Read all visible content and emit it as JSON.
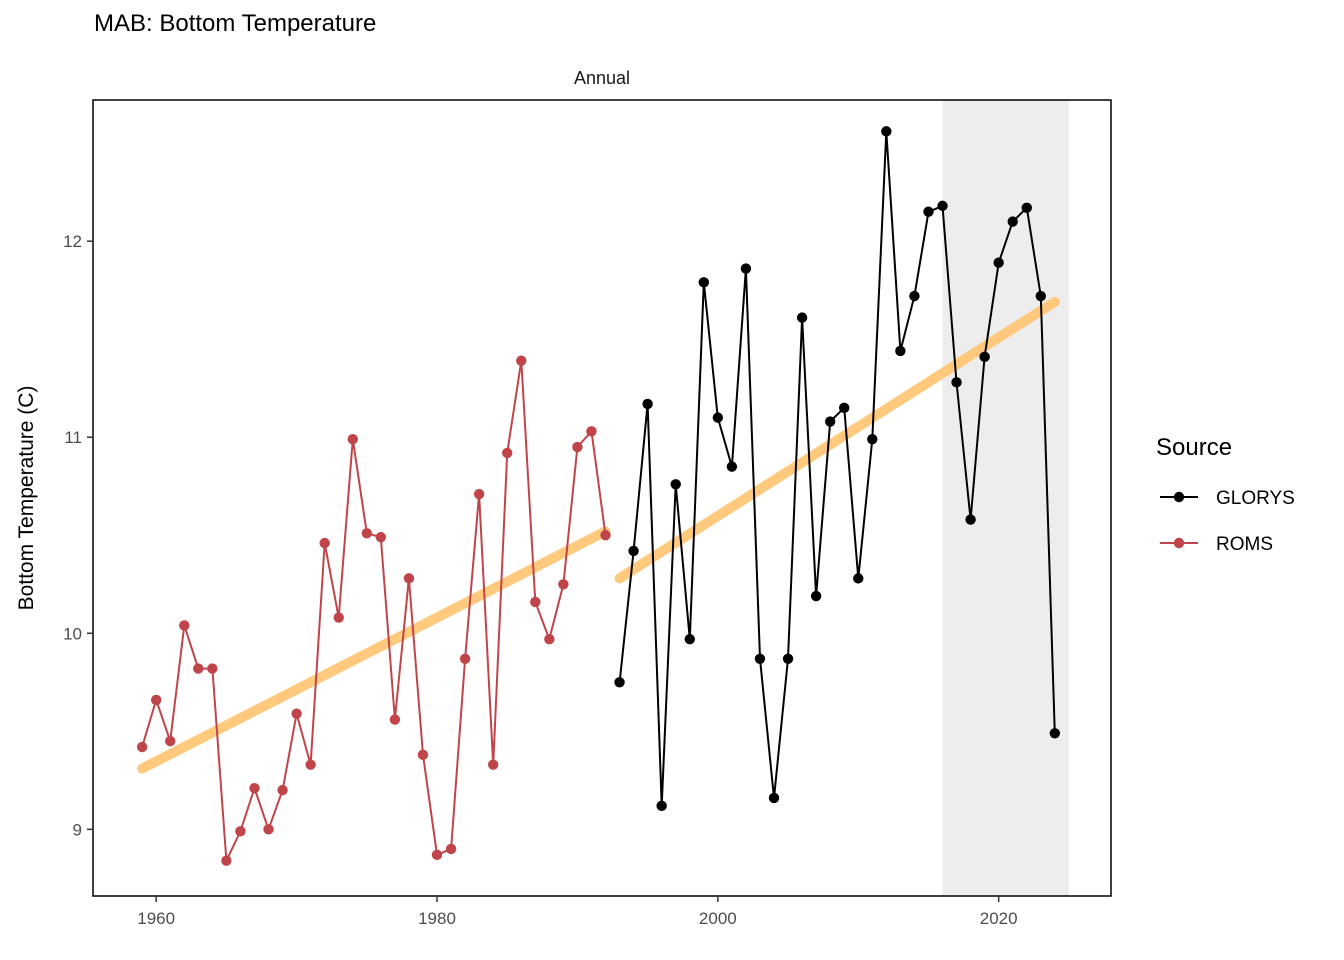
{
  "title": "MAB: Bottom Temperature",
  "chart_data": {
    "type": "line",
    "facet_label": "Annual",
    "xlabel": "",
    "ylabel": "Bottom Temperature (C)",
    "xlim": [
      1955.5,
      2028
    ],
    "ylim": [
      8.66,
      12.72
    ],
    "x_ticks": [
      1960,
      1980,
      2000,
      2020
    ],
    "y_ticks": [
      9,
      10,
      11,
      12
    ],
    "grid": false,
    "shaded_region": {
      "x_start": 2016,
      "x_end": 2025,
      "color": "#ededed"
    },
    "legend": {
      "title": "Source",
      "position": "right"
    },
    "series": [
      {
        "name": "ROMS",
        "color": "#c0454a",
        "x": [
          1959,
          1960,
          1961,
          1962,
          1963,
          1964,
          1965,
          1966,
          1967,
          1968,
          1969,
          1970,
          1971,
          1972,
          1973,
          1974,
          1975,
          1976,
          1977,
          1978,
          1979,
          1980,
          1981,
          1982,
          1983,
          1984,
          1985,
          1986,
          1987,
          1988,
          1989,
          1990,
          1991,
          1992
        ],
        "values": [
          9.42,
          9.66,
          9.45,
          10.04,
          9.82,
          9.82,
          8.84,
          8.99,
          9.21,
          9.0,
          9.2,
          9.59,
          9.33,
          10.46,
          10.08,
          10.99,
          10.51,
          10.49,
          9.56,
          10.28,
          9.38,
          8.87,
          8.9,
          9.87,
          10.71,
          9.33,
          10.92,
          11.39,
          10.16,
          9.97,
          10.25,
          10.95,
          11.03,
          10.5
        ]
      },
      {
        "name": "GLORYS",
        "color": "#000000",
        "x": [
          1993,
          1994,
          1995,
          1996,
          1997,
          1998,
          1999,
          2000,
          2001,
          2002,
          2003,
          2004,
          2005,
          2006,
          2007,
          2008,
          2009,
          2010,
          2011,
          2012,
          2013,
          2014,
          2015,
          2016,
          2017,
          2018,
          2019,
          2020,
          2021,
          2022,
          2023,
          2024
        ],
        "values": [
          9.75,
          10.42,
          11.17,
          9.12,
          10.76,
          9.97,
          11.79,
          11.1,
          10.85,
          11.86,
          9.87,
          9.16,
          9.87,
          11.61,
          10.19,
          11.08,
          11.15,
          10.28,
          10.99,
          12.56,
          11.44,
          11.72,
          12.15,
          12.18,
          11.28,
          10.58,
          11.41,
          11.89,
          12.1,
          12.17,
          11.72,
          9.49
        ]
      }
    ],
    "trend_lines": [
      {
        "color": "#ffc878",
        "x": [
          1959,
          1992
        ],
        "y": [
          9.31,
          10.52
        ]
      },
      {
        "color": "#ffc878",
        "x": [
          1993,
          2024
        ],
        "y": [
          10.28,
          11.69
        ]
      }
    ]
  }
}
